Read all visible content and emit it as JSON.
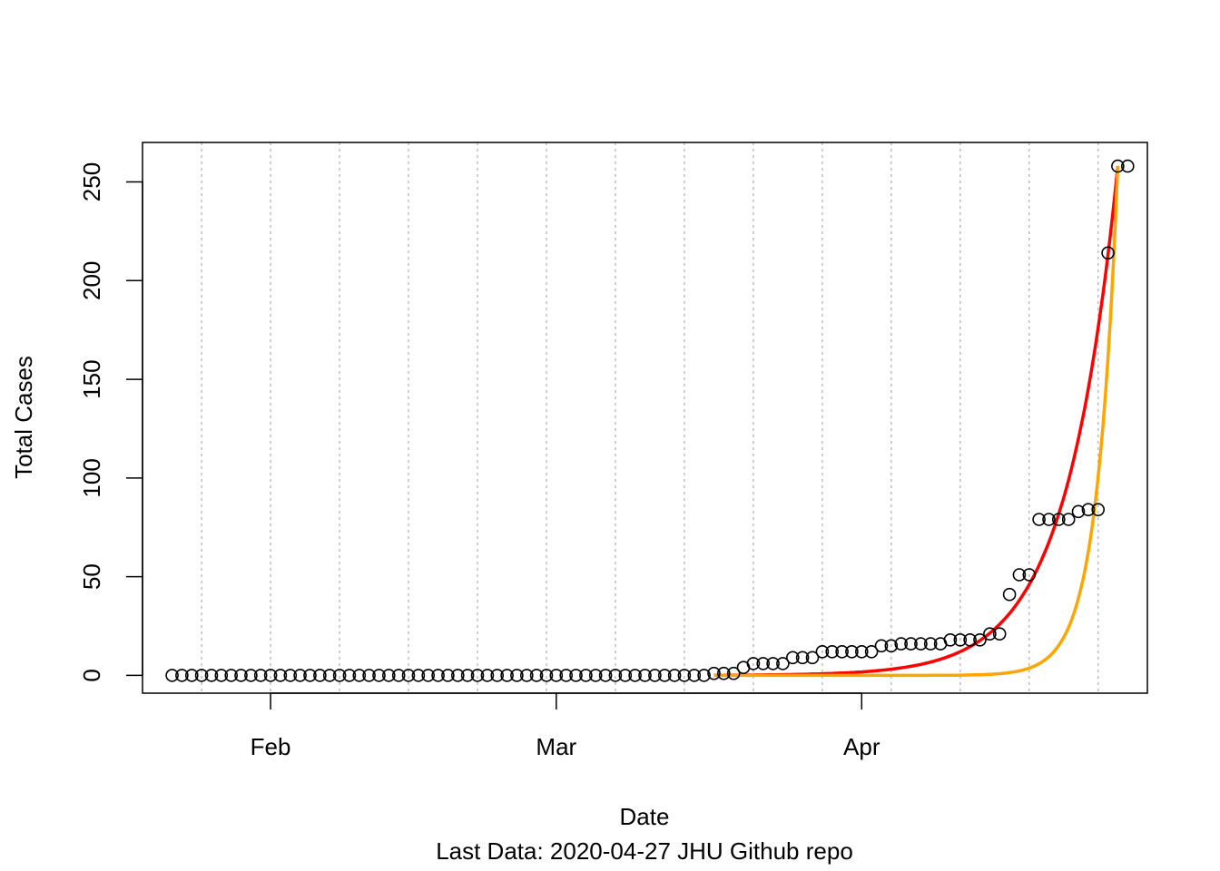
{
  "chart_data": {
    "type": "scatter",
    "xlabel": "Date",
    "ylabel": "Total Cases",
    "caption": "Last Data: 2020-04-27  JHU Github repo",
    "x_range": [
      "2020-01-19",
      "2020-04-30"
    ],
    "ylim": [
      -9,
      270
    ],
    "x_ticks": [
      {
        "date": "2020-02-01",
        "label": "Feb"
      },
      {
        "date": "2020-03-01",
        "label": "Mar"
      },
      {
        "date": "2020-04-01",
        "label": "Apr"
      }
    ],
    "y_ticks": [
      {
        "value": 0,
        "label": "0"
      },
      {
        "value": 50,
        "label": "50"
      },
      {
        "value": 100,
        "label": "100"
      },
      {
        "value": 150,
        "label": "150"
      },
      {
        "value": 200,
        "label": "200"
      },
      {
        "value": 250,
        "label": "250"
      }
    ],
    "vertical_grid_dates": [
      "2020-01-25",
      "2020-02-01",
      "2020-02-08",
      "2020-02-15",
      "2020-02-22",
      "2020-02-29",
      "2020-03-07",
      "2020-03-14",
      "2020-03-21",
      "2020-03-28",
      "2020-04-04",
      "2020-04-11",
      "2020-04-18",
      "2020-04-25"
    ],
    "grid": "vertical dotted",
    "colors": {
      "points": "#000000",
      "grid": "#bebebe",
      "fit_red": "#ff0000",
      "fit_orange": "#ffa500"
    },
    "series": [
      {
        "type": "scatter",
        "x_start": "2020-01-22",
        "y": [
          0,
          0,
          0,
          0,
          0,
          0,
          0,
          0,
          0,
          0,
          0,
          0,
          0,
          0,
          0,
          0,
          0,
          0,
          0,
          0,
          0,
          0,
          0,
          0,
          0,
          0,
          0,
          0,
          0,
          0,
          0,
          0,
          0,
          0,
          0,
          0,
          0,
          0,
          0,
          0,
          0,
          0,
          0,
          0,
          0,
          0,
          0,
          0,
          0,
          0,
          0,
          0,
          0,
          0,
          0,
          1,
          1,
          1,
          4,
          6,
          6,
          6,
          6,
          9,
          9,
          9,
          12,
          12,
          12,
          12,
          12,
          12,
          15,
          15,
          16,
          16,
          16,
          16,
          16,
          18,
          18,
          18,
          18,
          21,
          21,
          41,
          51,
          51,
          79,
          79,
          79,
          79,
          83,
          84,
          84,
          214,
          258,
          258
        ]
      },
      {
        "type": "line",
        "color": "#ff0000",
        "x_start": "2020-03-17",
        "x_end": "2020-04-27",
        "y_start": 0.1,
        "y_end": 258
      },
      {
        "type": "line",
        "color": "#ffa500",
        "x_start": "2020-03-17",
        "x_end": "2020-04-27",
        "y_start": 1e-06,
        "y_end": 258
      }
    ]
  }
}
